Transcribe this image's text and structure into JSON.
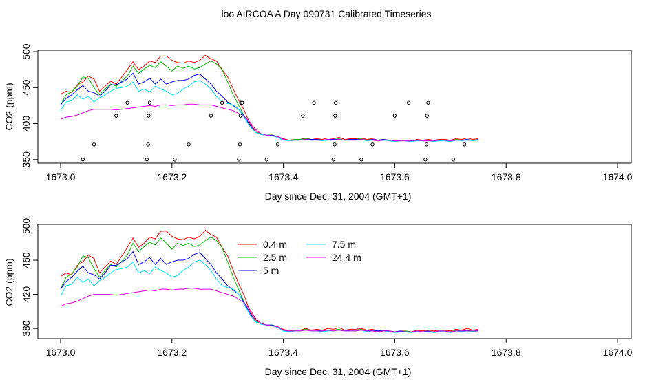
{
  "title": "loo AIRCOA A  Day 090731  Calibrated Timeseries",
  "colors": {
    "0.4 m": "#ff0000",
    "2.5 m": "#00c000",
    "5 m": "#0000ff",
    "7.5 m": "#00e5ff",
    "24.4 m": "#e000e0",
    "scatter": "#000000"
  },
  "chart_data": [
    {
      "type": "line",
      "xlabel": "Day since Dec. 31, 2004 (GMT+1)",
      "ylabel": "CO2 (ppm)",
      "xlim": [
        1673.0,
        1674.0
      ],
      "ylim": [
        345,
        502
      ],
      "xticks": [
        "1673.0",
        "1673.2",
        "1673.4",
        "1673.6",
        "1673.8",
        "1674.0"
      ],
      "yticks": [
        "350",
        "400",
        "450",
        "500"
      ],
      "x": [
        1673.0,
        1673.01,
        1673.02,
        1673.03,
        1673.04,
        1673.05,
        1673.06,
        1673.07,
        1673.08,
        1673.09,
        1673.1,
        1673.11,
        1673.12,
        1673.13,
        1673.14,
        1673.15,
        1673.16,
        1673.17,
        1673.18,
        1673.19,
        1673.2,
        1673.21,
        1673.22,
        1673.23,
        1673.24,
        1673.25,
        1673.26,
        1673.27,
        1673.28,
        1673.29,
        1673.3,
        1673.31,
        1673.32,
        1673.33,
        1673.34,
        1673.35,
        1673.36,
        1673.37,
        1673.38,
        1673.39,
        1673.4,
        1673.41,
        1673.42,
        1673.43,
        1673.44,
        1673.45,
        1673.46,
        1673.47,
        1673.48,
        1673.49,
        1673.5,
        1673.51,
        1673.52,
        1673.53,
        1673.54,
        1673.55,
        1673.56,
        1673.57,
        1673.58,
        1673.59,
        1673.6,
        1673.61,
        1673.62,
        1673.63,
        1673.64,
        1673.65,
        1673.66,
        1673.67,
        1673.68,
        1673.69,
        1673.7,
        1673.71,
        1673.72,
        1673.73,
        1673.74,
        1673.75
      ],
      "series": [
        {
          "name": "0.4 m",
          "values": [
            441,
            445,
            443,
            454,
            458,
            466,
            462,
            445,
            452,
            459,
            455,
            465,
            475,
            486,
            475,
            480,
            487,
            485,
            494,
            494,
            488,
            485,
            484,
            487,
            485,
            488,
            495,
            490,
            487,
            475,
            465,
            448,
            432,
            418,
            400,
            390,
            385,
            384,
            384,
            382,
            379,
            377,
            378,
            378,
            380,
            378,
            379,
            378,
            380,
            379,
            381,
            378,
            379,
            379,
            380,
            378,
            379,
            377,
            378,
            377,
            376,
            377,
            377,
            376,
            378,
            377,
            378,
            377,
            378,
            378,
            377,
            379,
            378,
            380,
            378,
            379
          ]
        },
        {
          "name": "2.5 m",
          "values": [
            426,
            440,
            444,
            452,
            465,
            463,
            450,
            440,
            448,
            455,
            452,
            459,
            466,
            480,
            470,
            476,
            481,
            478,
            486,
            480,
            473,
            480,
            477,
            480,
            476,
            478,
            483,
            487,
            483,
            475,
            458,
            440,
            425,
            410,
            396,
            388,
            386,
            384,
            384,
            381,
            378,
            376,
            378,
            378,
            379,
            378,
            378,
            377,
            378,
            378,
            379,
            377,
            378,
            378,
            379,
            377,
            378,
            376,
            377,
            377,
            375,
            376,
            377,
            376,
            377,
            376,
            377,
            376,
            377,
            377,
            376,
            378,
            377,
            378,
            377,
            378
          ]
        },
        {
          "name": "5 m",
          "values": [
            426,
            435,
            440,
            447,
            453,
            445,
            443,
            438,
            445,
            454,
            454,
            458,
            462,
            470,
            455,
            458,
            463,
            455,
            462,
            455,
            458,
            460,
            460,
            462,
            467,
            469,
            462,
            455,
            445,
            438,
            430,
            425,
            420,
            410,
            398,
            388,
            385,
            384,
            384,
            382,
            378,
            376,
            377,
            377,
            378,
            378,
            378,
            377,
            378,
            378,
            378,
            377,
            378,
            378,
            378,
            377,
            378,
            377,
            378,
            377,
            376,
            377,
            376,
            375,
            377,
            376,
            377,
            375,
            377,
            377,
            375,
            377,
            377,
            378,
            376,
            378
          ]
        },
        {
          "name": "7.5 m",
          "values": [
            418,
            430,
            432,
            440,
            434,
            438,
            430,
            436,
            440,
            445,
            449,
            450,
            452,
            458,
            445,
            448,
            444,
            452,
            448,
            445,
            440,
            442,
            448,
            452,
            458,
            460,
            455,
            448,
            438,
            430,
            428,
            426,
            420,
            408,
            396,
            388,
            385,
            384,
            383,
            381,
            377,
            376,
            377,
            377,
            378,
            377,
            377,
            376,
            377,
            377,
            378,
            377,
            377,
            377,
            378,
            376,
            377,
            376,
            377,
            376,
            375,
            376,
            376,
            375,
            376,
            376,
            376,
            375,
            376,
            376,
            375,
            377,
            376,
            377,
            376,
            377
          ]
        },
        {
          "name": "24.4 m",
          "values": [
            406,
            409,
            410,
            412,
            415,
            418,
            420,
            420,
            420,
            420,
            419,
            420,
            421,
            422,
            423,
            424,
            425,
            424,
            426,
            426,
            425,
            426,
            426,
            427,
            427,
            426,
            426,
            426,
            424,
            422,
            420,
            418,
            414,
            410,
            402,
            392,
            386,
            384,
            383,
            382,
            378,
            377,
            377,
            377,
            378,
            377,
            377,
            377,
            378,
            377,
            378,
            377,
            377,
            377,
            378,
            377,
            377,
            376,
            377,
            377,
            376,
            376,
            376,
            376,
            377,
            376,
            376,
            376,
            377,
            377,
            376,
            377,
            377,
            377,
            377,
            377
          ]
        },
        {
          "name": "",
          "mode": "markers",
          "x": [
            1673.04,
            1673.06,
            1673.1,
            1673.12,
            1673.155,
            1673.157,
            1673.158,
            1673.16,
            1673.205,
            1673.23,
            1673.27,
            1673.29,
            1673.32,
            1673.322,
            1673.323,
            1673.324,
            1673.326,
            1673.37,
            1673.39,
            1673.435,
            1673.455,
            1673.49,
            1673.492,
            1673.493,
            1673.494,
            1673.54,
            1673.56,
            1673.6,
            1673.625,
            1673.655,
            1673.657,
            1673.658,
            1673.66,
            1673.705,
            1673.725
          ],
          "values": [
            350,
            371,
            411,
            429,
            350,
            371,
            411,
            429,
            350,
            371,
            411,
            429,
            350,
            371,
            411,
            429,
            429,
            350,
            371,
            411,
            429,
            350,
            371,
            411,
            429,
            350,
            371,
            411,
            429,
            350,
            371,
            411,
            429,
            350,
            371
          ]
        }
      ]
    },
    {
      "type": "line",
      "xlabel": "Day since Dec. 31, 2004 (GMT+1)",
      "ylabel": "CO2 (ppm)",
      "xlim": [
        1673.0,
        1674.0
      ],
      "ylim": [
        368,
        502
      ],
      "xticks": [
        "1673.0",
        "1673.2",
        "1673.4",
        "1673.6",
        "1673.8",
        "1674.0"
      ],
      "yticks": [
        "380",
        "420",
        "460",
        "500"
      ],
      "legend": [
        "0.4 m",
        "2.5 m",
        "5 m",
        "7.5 m",
        "24.4 m"
      ],
      "legend_position": "top-center"
    }
  ]
}
